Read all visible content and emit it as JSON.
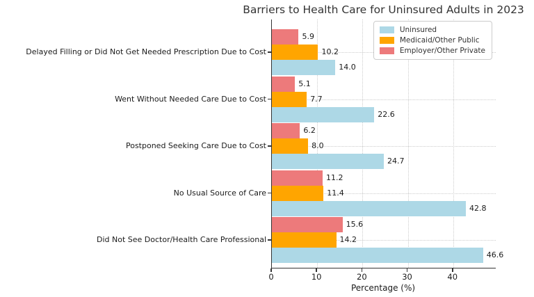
{
  "chart_data": {
    "type": "bar",
    "orientation": "horizontal",
    "title": "Barriers to Health Care for Uninsured Adults in 2023",
    "xlabel": "Percentage (%)",
    "categories": [
      "Delayed Filling or Did Not Get Needed Prescription Due to Cost",
      "Went Without Needed Care Due to Cost",
      "Postponed Seeking Care Due to Cost",
      "No Usual Source of Care",
      "Did Not See Doctor/Health Care Professional"
    ],
    "series": [
      {
        "name": "Uninsured",
        "color": "#ADD8E6",
        "values": [
          14.0,
          22.6,
          24.7,
          42.8,
          46.6
        ]
      },
      {
        "name": "Medicaid/Other Public",
        "color": "#FFA500",
        "values": [
          10.2,
          7.7,
          8.0,
          11.4,
          14.2
        ]
      },
      {
        "name": "Employer/Other Private",
        "color": "#ED7A7B",
        "values": [
          5.9,
          5.1,
          6.2,
          11.2,
          15.6
        ]
      }
    ],
    "x_ticks": [
      0,
      10,
      20,
      30,
      40
    ],
    "xlim": [
      0,
      49.4
    ],
    "grid": "dotted, both axes",
    "legend_position": "top-right inside plot",
    "legend_order": [
      "Uninsured",
      "Medicaid/Other Public",
      "Employer/Other Private"
    ],
    "series_order_within_group_top_to_bottom": [
      "Employer/Other Private",
      "Medicaid/Other Public",
      "Uninsured"
    ],
    "bar_label_format": "one decimal, right of bar"
  },
  "colors": {
    "axis": "#333333",
    "grid": "#cccccc",
    "title_text": "#333333",
    "label_text": "#1a1a1a",
    "legend_border": "#cccccc",
    "background": "#ffffff"
  }
}
